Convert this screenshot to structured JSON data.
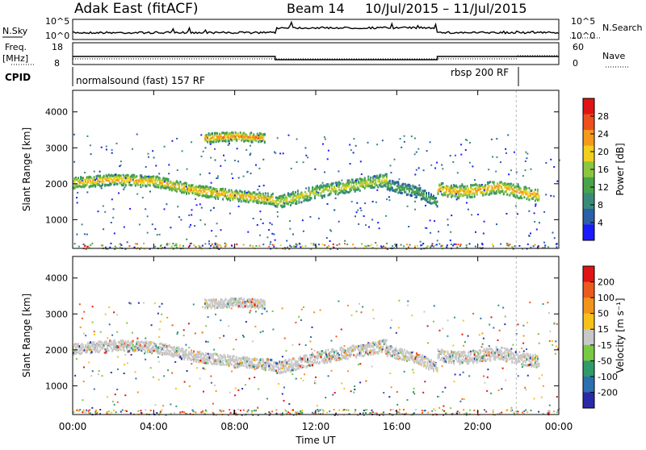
{
  "header": {
    "station": "Adak East (fitACF)",
    "beam": "Beam 14",
    "dates": "10/Jul/2015 – 11/Jul/2015"
  },
  "noise_panel": {
    "left_label": "N.Sky",
    "right_label": "N.Search",
    "left_ticks": [
      "10^5",
      "10^0"
    ],
    "right_ticks": [
      "10^5",
      "10^0"
    ]
  },
  "freq_panel": {
    "left_label": "Freq.",
    "left_unit": "[MHz]",
    "right_label": "Nave",
    "left_ticks": [
      "18",
      "8"
    ],
    "right_ticks": [
      "60",
      "0"
    ]
  },
  "cpid_panel": {
    "label": "CPID",
    "programs": [
      {
        "name": "normalsound (fast) 157 RF",
        "start_hour": 0,
        "end_hour": 21.9
      },
      {
        "name": "rbsp 200 RF",
        "start_hour": 21.9,
        "end_hour": 24
      }
    ]
  },
  "x_axis": {
    "label": "Time UT",
    "ticks": [
      "00:00",
      "04:00",
      "08:00",
      "12:00",
      "16:00",
      "20:00",
      "00:00"
    ]
  },
  "power_panel": {
    "y_label": "Slant Range [km]",
    "y_ticks": [
      "1000",
      "2000",
      "3000",
      "4000"
    ],
    "colorbar_label": "Power [dB]",
    "colorbar_ticks": [
      "4",
      "8",
      "12",
      "16",
      "20",
      "24",
      "28"
    ],
    "colors": [
      "#1a1aff",
      "#2b5fa8",
      "#3a8a7a",
      "#49a34a",
      "#8cc63f",
      "#f2cf1b",
      "#f59a1c",
      "#ef4e1e",
      "#e01414"
    ]
  },
  "velocity_panel": {
    "y_label": "Slant Range [km]",
    "y_ticks": [
      "1000",
      "2000",
      "3000",
      "4000"
    ],
    "colorbar_label": "Velocity [m s⁻¹]",
    "colorbar_ticks": [
      "200",
      "100",
      "50",
      "15",
      "-15",
      "-50",
      "-100",
      "-200"
    ],
    "colors": [
      "#2a2aa8",
      "#2e6fb0",
      "#2f9a6a",
      "#7ac943",
      "#c8c8c8",
      "#f6c21a",
      "#f2931b",
      "#ee5a1d",
      "#e01414"
    ]
  },
  "chart_data": {
    "type": "heatmap",
    "x_range_hours": [
      0,
      24
    ],
    "y_range_km": [
      200,
      4600
    ],
    "frequency_mhz": [
      {
        "from_hour": 0,
        "to_hour": 10,
        "value": 13
      },
      {
        "from_hour": 10,
        "to_hour": 18,
        "value": 11
      },
      {
        "from_hour": 18,
        "to_hour": 24,
        "value": 13
      }
    ],
    "scatter_bands": [
      {
        "hours": [
          0,
          2,
          4,
          6,
          8,
          9.9
        ],
        "range_km": [
          2050,
          2150,
          2100,
          1850,
          1700,
          1600
        ],
        "width_km": 300,
        "power_db": 22
      },
      {
        "hours": [
          10,
          12,
          14,
          15.5
        ],
        "range_km": [
          1500,
          1800,
          2000,
          2150
        ],
        "width_km": 350,
        "power_db": 18
      },
      {
        "hours": [
          15.5,
          17,
          18
        ],
        "range_km": [
          2000,
          1800,
          1500
        ],
        "width_km": 300,
        "power_db": 12
      },
      {
        "hours": [
          18,
          19,
          20,
          21,
          22,
          23
        ],
        "range_km": [
          1900,
          1800,
          1850,
          1950,
          1800,
          1700
        ],
        "width_km": 350,
        "power_db": 22
      },
      {
        "hours": [
          6.5,
          8,
          9.5
        ],
        "range_km": [
          3300,
          3350,
          3300
        ],
        "width_km": 250,
        "power_db": 24
      }
    ]
  }
}
